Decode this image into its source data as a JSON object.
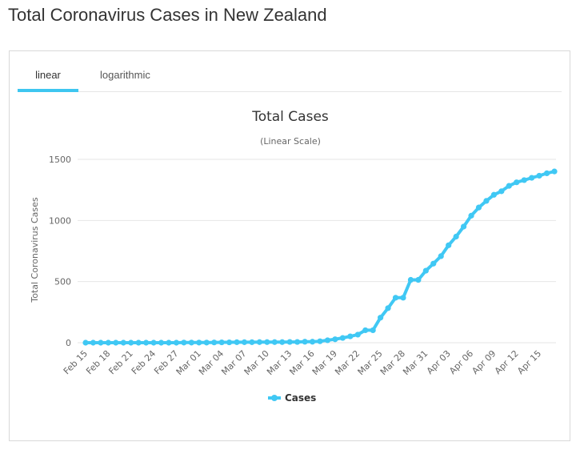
{
  "page": {
    "title": "Total Coronavirus Cases in New Zealand"
  },
  "tabs": [
    {
      "label": "linear",
      "active": true
    },
    {
      "label": "logarithmic",
      "active": false
    }
  ],
  "colors": {
    "accent": "#3ec6f0",
    "series": "#40c8f4",
    "grid": "#e6e6e6"
  },
  "chart_data": {
    "type": "line",
    "title": "Total Cases",
    "subtitle": "(Linear Scale)",
    "xlabel": "",
    "ylabel": "Total Coronavirus Cases",
    "ylim": [
      0,
      1500
    ],
    "yticks": [
      0,
      500,
      1000,
      1500
    ],
    "grid": true,
    "legend_position": "bottom",
    "x_tick_labels": [
      "Feb 15",
      "Feb 18",
      "Feb 21",
      "Feb 24",
      "Feb 27",
      "Mar 01",
      "Mar 04",
      "Mar 07",
      "Mar 10",
      "Mar 13",
      "Mar 16",
      "Mar 19",
      "Mar 22",
      "Mar 25",
      "Mar 28",
      "Mar 31",
      "Apr 03",
      "Apr 06",
      "Apr 09",
      "Apr 12",
      "Apr 15"
    ],
    "categories": [
      "Feb 15",
      "Feb 16",
      "Feb 17",
      "Feb 18",
      "Feb 19",
      "Feb 20",
      "Feb 21",
      "Feb 22",
      "Feb 23",
      "Feb 24",
      "Feb 25",
      "Feb 26",
      "Feb 27",
      "Feb 28",
      "Feb 29",
      "Mar 01",
      "Mar 02",
      "Mar 03",
      "Mar 04",
      "Mar 05",
      "Mar 06",
      "Mar 07",
      "Mar 08",
      "Mar 09",
      "Mar 10",
      "Mar 11",
      "Mar 12",
      "Mar 13",
      "Mar 14",
      "Mar 15",
      "Mar 16",
      "Mar 17",
      "Mar 18",
      "Mar 19",
      "Mar 20",
      "Mar 21",
      "Mar 22",
      "Mar 23",
      "Mar 24",
      "Mar 25",
      "Mar 26",
      "Mar 27",
      "Mar 28",
      "Mar 29",
      "Mar 30",
      "Mar 31",
      "Apr 01",
      "Apr 02",
      "Apr 03",
      "Apr 04",
      "Apr 05",
      "Apr 06",
      "Apr 07",
      "Apr 08",
      "Apr 09",
      "Apr 10",
      "Apr 11",
      "Apr 12",
      "Apr 13",
      "Apr 14",
      "Apr 15",
      "Apr 16",
      "Apr 17"
    ],
    "series": [
      {
        "name": "Cases",
        "values": [
          0,
          0,
          0,
          0,
          0,
          0,
          0,
          0,
          0,
          0,
          0,
          0,
          0,
          1,
          1,
          1,
          1,
          2,
          3,
          3,
          4,
          4,
          4,
          5,
          5,
          5,
          5,
          6,
          6,
          8,
          8,
          12,
          20,
          28,
          39,
          52,
          66,
          102,
          102,
          205,
          283,
          368,
          368,
          514,
          514,
          589,
          647,
          708,
          797,
          868,
          950,
          1039,
          1106,
          1160,
          1210,
          1239,
          1283,
          1312,
          1330,
          1349,
          1366,
          1386,
          1401
        ]
      }
    ]
  }
}
